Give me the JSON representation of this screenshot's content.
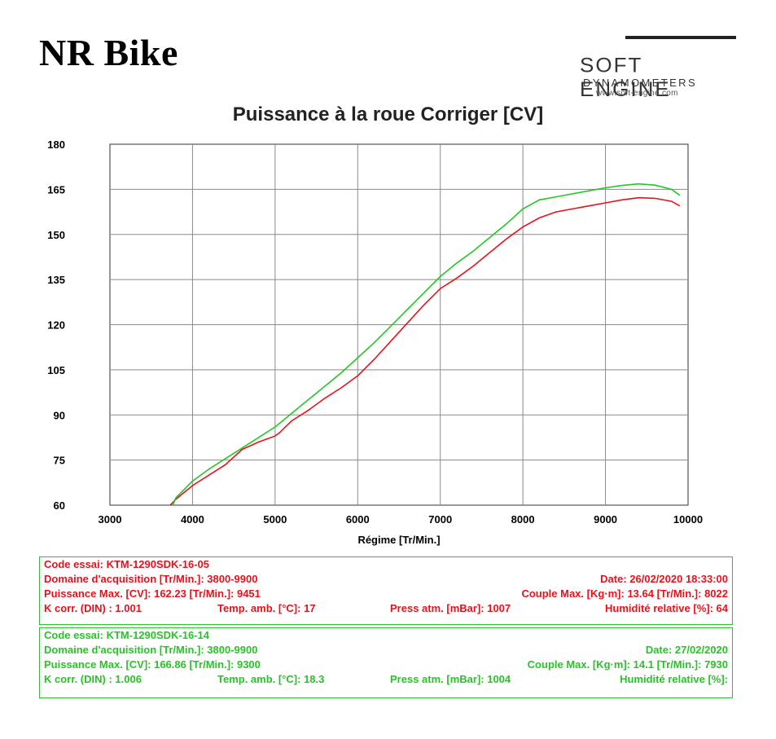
{
  "header": {
    "title": "NR Bike",
    "logo": {
      "brand": "SOFT ENGINE",
      "sub": "DYNAMOMETERS",
      "url": "www.soft-engine.com"
    }
  },
  "chart_data": {
    "type": "line",
    "title": "Puissance à la roue Corriger [CV]",
    "xlabel": "Régime [Tr/Min.]",
    "ylabel": "",
    "xlim": [
      3000,
      10000
    ],
    "ylim": [
      60,
      180
    ],
    "xticks": [
      3000,
      4000,
      5000,
      6000,
      7000,
      8000,
      9000,
      10000
    ],
    "yticks": [
      60,
      75,
      90,
      105,
      120,
      135,
      150,
      165,
      180
    ],
    "grid": true,
    "series": [
      {
        "name": "KTM-1290SDK-16-05",
        "color": "#e8101a",
        "x": [
          3730,
          3800,
          4000,
          4200,
          4400,
          4600,
          4800,
          5000,
          5050,
          5200,
          5400,
          5600,
          5800,
          6000,
          6200,
          6400,
          6600,
          6800,
          7000,
          7200,
          7400,
          7600,
          7800,
          8000,
          8200,
          8400,
          8600,
          8800,
          9000,
          9200,
          9400,
          9600,
          9800,
          9900
        ],
        "y": [
          60,
          62,
          66.5,
          70,
          73.5,
          78.5,
          81,
          83,
          84,
          88,
          91.5,
          95.5,
          99,
          103,
          108.5,
          114.5,
          120.5,
          126.5,
          132,
          135.5,
          139.5,
          144,
          148.5,
          152.5,
          155.5,
          157.5,
          158.5,
          159.5,
          160.5,
          161.5,
          162.2,
          162,
          161,
          159.5
        ]
      },
      {
        "name": "KTM-1290SDK-16-14",
        "color": "#27c427",
        "x": [
          3760,
          3800,
          4000,
          4200,
          4400,
          4600,
          4800,
          5000,
          5200,
          5400,
          5600,
          5800,
          6000,
          6200,
          6400,
          6600,
          6800,
          7000,
          7200,
          7400,
          7600,
          7800,
          8000,
          8200,
          8400,
          8600,
          8800,
          9000,
          9200,
          9400,
          9600,
          9800,
          9900
        ],
        "y": [
          60,
          62.5,
          68,
          72,
          75.5,
          79,
          82.5,
          86,
          90.5,
          95,
          99.5,
          104,
          109,
          114,
          119.5,
          125,
          130.5,
          136,
          140.5,
          144.5,
          149,
          153.5,
          158.5,
          161.5,
          162.5,
          163.5,
          164.5,
          165.5,
          166.3,
          166.8,
          166.4,
          165,
          163
        ]
      }
    ]
  },
  "runs": [
    {
      "color": "#e8101a",
      "code": "Code essai: KTM-1290SDK-16-05",
      "domain": "Domaine d'acquisition [Tr/Min.]: 3800-9900",
      "date": "Date: 26/02/2020   18:33:00",
      "power": "Puissance Max. [CV]: 162.23   [Tr/Min.]: 9451",
      "torque": "Couple Max. [Kg·m]: 13.64   [Tr/Min.]: 8022",
      "kcorr": "K corr. (DIN) : 1.001",
      "temp": "Temp. amb. [°C]: 17",
      "press": "Press atm. [mBar]: 1007",
      "humid": "Humidité relative [%]: 64"
    },
    {
      "color": "#27c427",
      "code": "Code essai: KTM-1290SDK-16-14",
      "domain": "Domaine d'acquisition [Tr/Min.]: 3800-9900",
      "date": "Date: 27/02/2020   ",
      "power": "Puissance Max. [CV]: 166.86   [Tr/Min.]: 9300",
      "torque": "Couple Max. [Kg·m]: 14.1    [Tr/Min.]: 7930",
      "kcorr": "K corr. (DIN) : 1.006",
      "temp": "Temp. amb. [°C]: 18.3",
      "press": "Press atm. [mBar]: 1004",
      "humid": "Humidité relative [%]: "
    }
  ]
}
